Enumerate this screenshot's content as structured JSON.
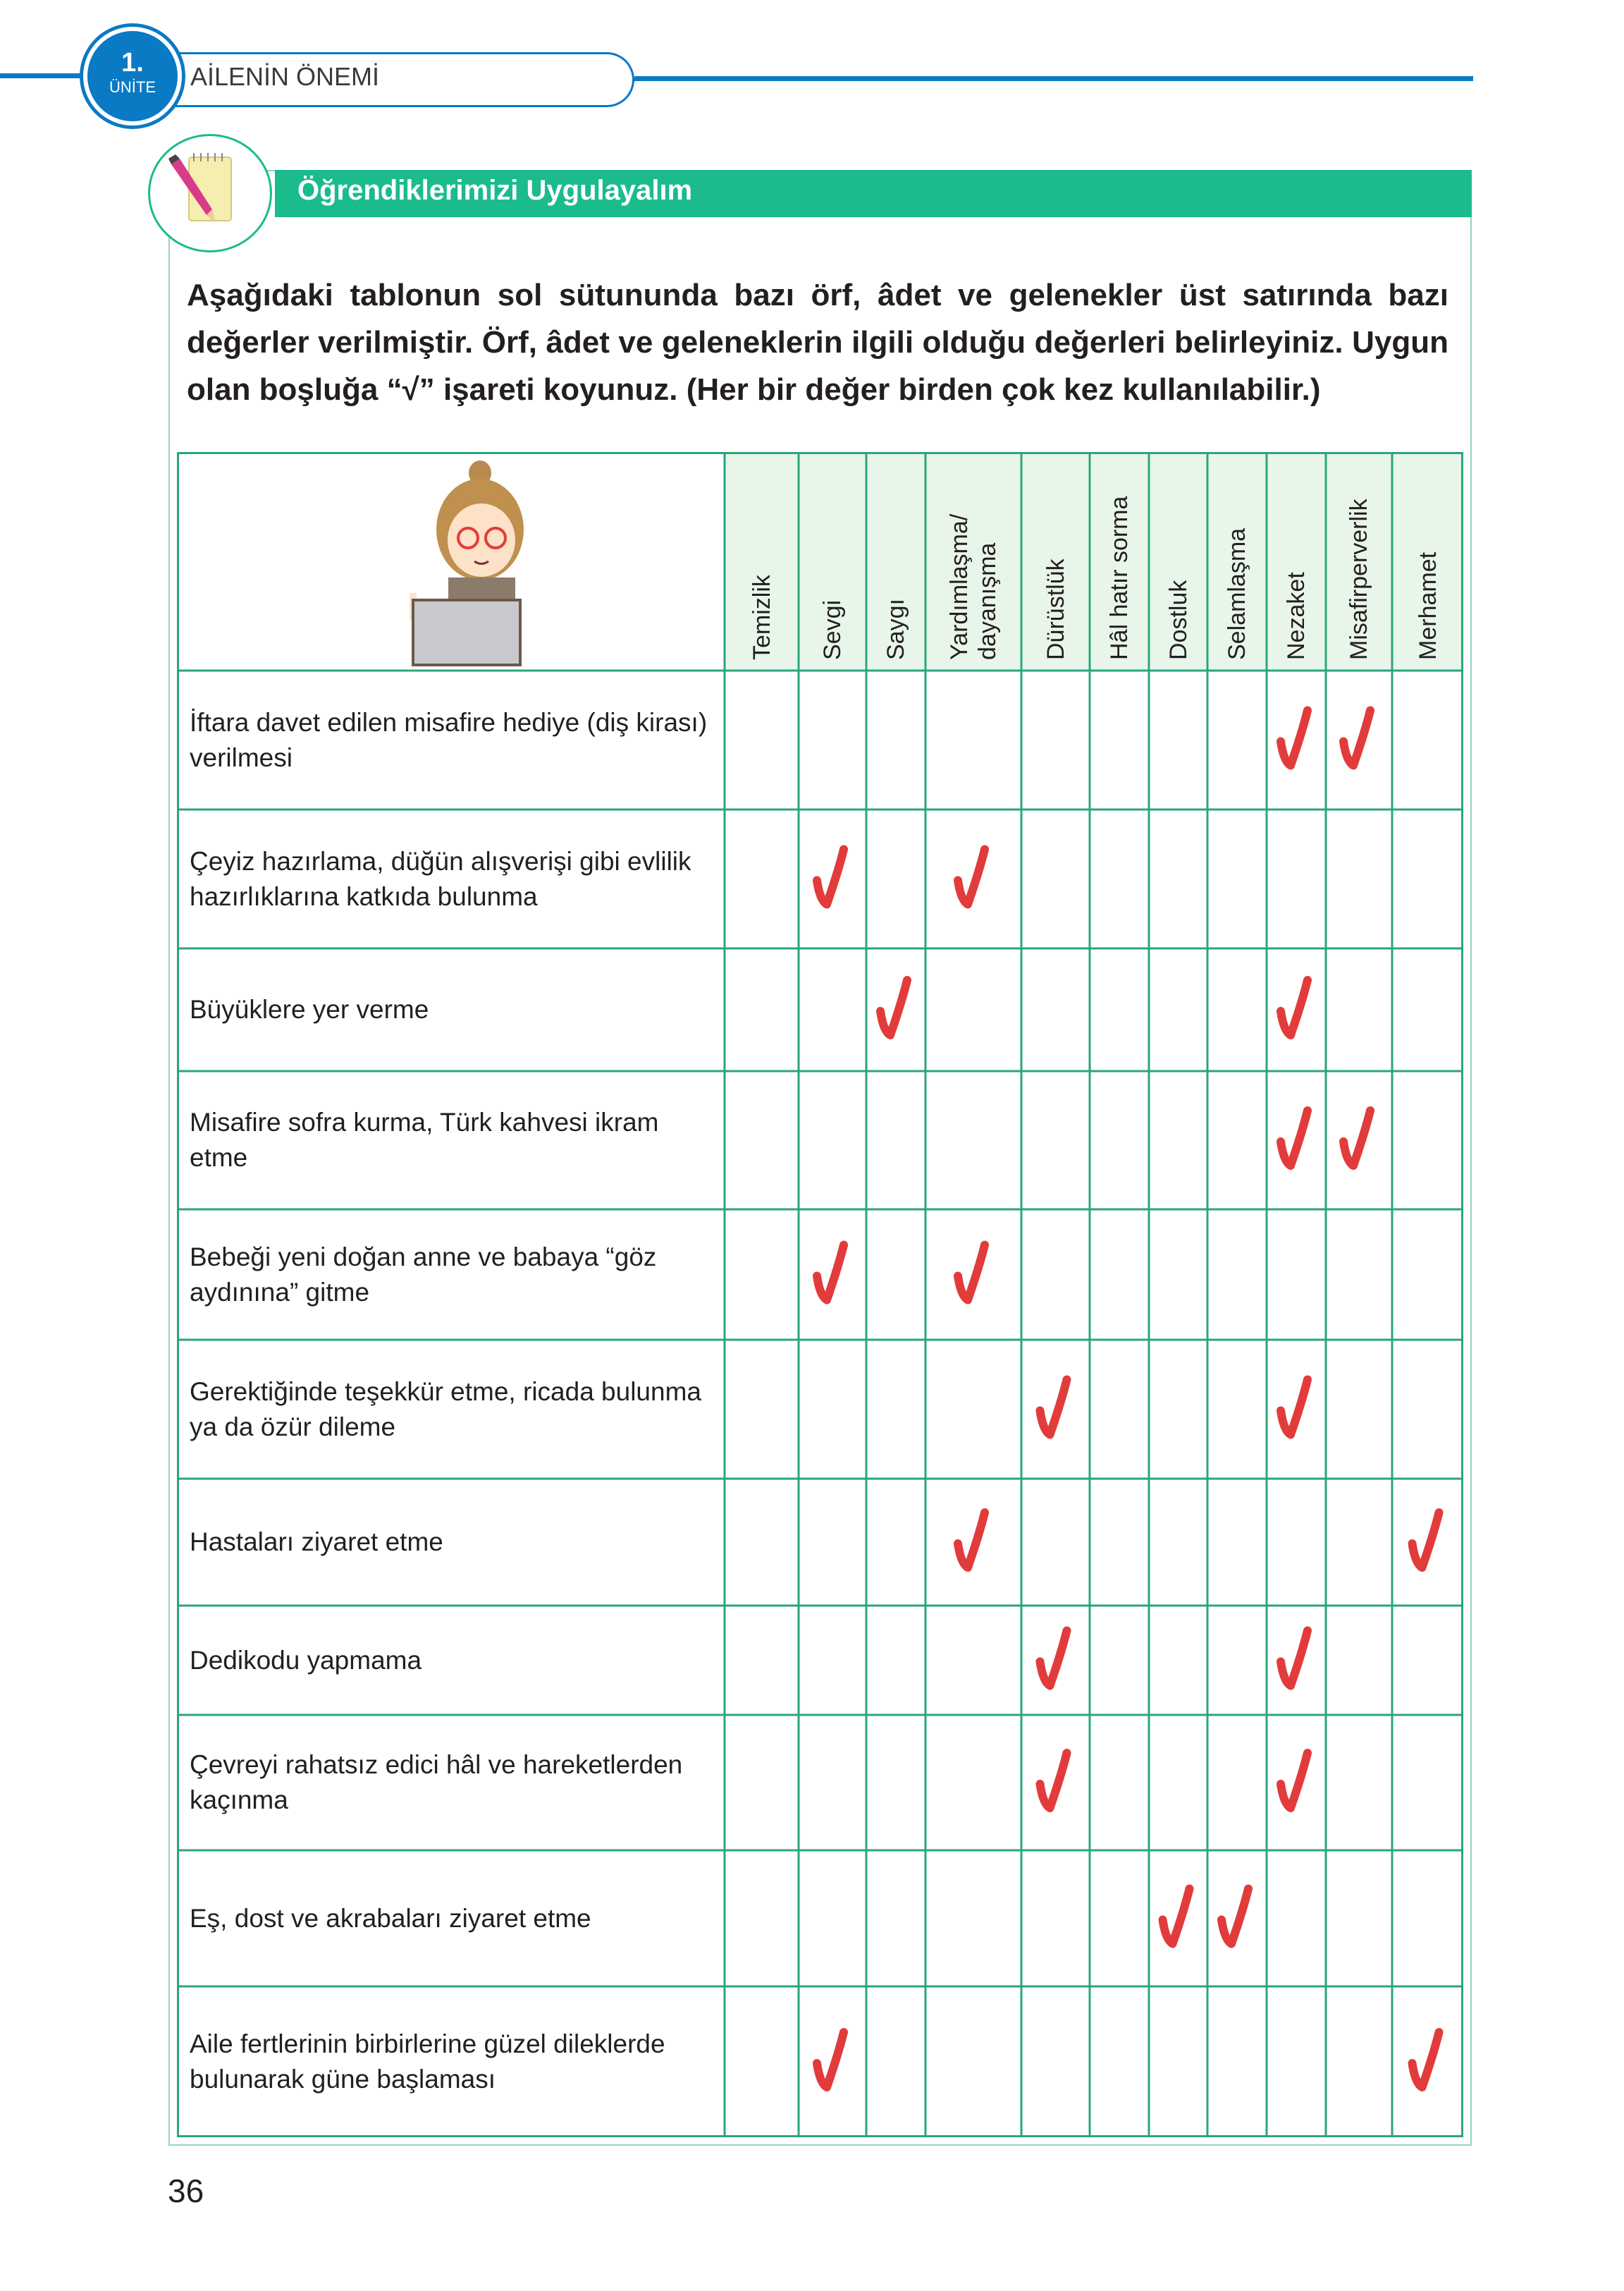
{
  "header": {
    "unit_number": "1.",
    "unit_word": "ÜNİTE",
    "unit_title": "AİLENİN ÖNEMİ"
  },
  "section": {
    "title": "Öğrendiklerimizi Uygulayalım",
    "icon": "pencil-notepad-icon"
  },
  "instructions": "Aşağıdaki tablonun sol sütununda bazı örf, âdet ve gelenekler üst satırında bazı değerler verilmiştir. Örf, âdet ve geleneklerin ilgili olduğu değerleri belirleyiniz. Uygun olan boşluğa “√” işareti koyunuz. (Her bir değer birden çok kez kullanılabilir.)",
  "table": {
    "illustration": "teacher-at-laptop-illustration",
    "columns": [
      "Temizlik",
      "Sevgi",
      "Saygı",
      "Yardımlaşma/ dayanışma",
      "Dürüstlük",
      "Hâl hatır sorma",
      "Dostluk",
      "Selamlaşma",
      "Nezaket",
      "Misafirperverlik",
      "Merhamet"
    ],
    "rows": [
      {
        "label": "İftara davet edilen misafire hediye (diş kirası) verilmesi",
        "checked": [
          "Nezaket",
          "Misafirperverlik"
        ]
      },
      {
        "label": "Çeyiz hazırlama, düğün alışverişi gibi evlilik hazırlıklarına katkıda bulunma",
        "checked": [
          "Sevgi",
          "Yardımlaşma/ dayanışma"
        ]
      },
      {
        "label": "Büyüklere yer verme",
        "checked": [
          "Saygı",
          "Nezaket"
        ]
      },
      {
        "label": "Misafire sofra kurma, Türk kahvesi ikram etme",
        "checked": [
          "Nezaket",
          "Misafirperverlik"
        ]
      },
      {
        "label": "Bebeği yeni doğan anne ve babaya “göz aydınına” gitme",
        "checked": [
          "Sevgi",
          "Yardımlaşma/ dayanışma"
        ]
      },
      {
        "label": "Gerektiğinde teşekkür etme, ricada bulunma ya da özür dileme",
        "checked": [
          "Dürüstlük",
          "Nezaket"
        ]
      },
      {
        "label": "Hastaları ziyaret etme",
        "checked": [
          "Yardımlaşma/ dayanışma",
          "Merhamet"
        ]
      },
      {
        "label": "Dedikodu yapmama",
        "checked": [
          "Dürüstlük",
          "Nezaket"
        ]
      },
      {
        "label": "Çevreyi rahatsız edici hâl ve hareketlerden kaçınma",
        "checked": [
          "Dürüstlük",
          "Nezaket"
        ]
      },
      {
        "label": "Eş, dost ve akrabaları ziyaret etme",
        "checked": [
          "Dostluk",
          "Selamlaşma"
        ]
      },
      {
        "label": "Aile fertlerinin birbirlerine güzel dileklerde bulunarak güne başlaması",
        "checked": [
          "Sevgi",
          "Merhamet"
        ]
      }
    ],
    "check_color": "#e23b3b",
    "grid_color": "#2aa57e",
    "header_bg": "#e8f6ea"
  },
  "page_number": "36",
  "colors": {
    "unit_blue": "#0a7ac4",
    "banner_green": "#1bbb8e"
  }
}
